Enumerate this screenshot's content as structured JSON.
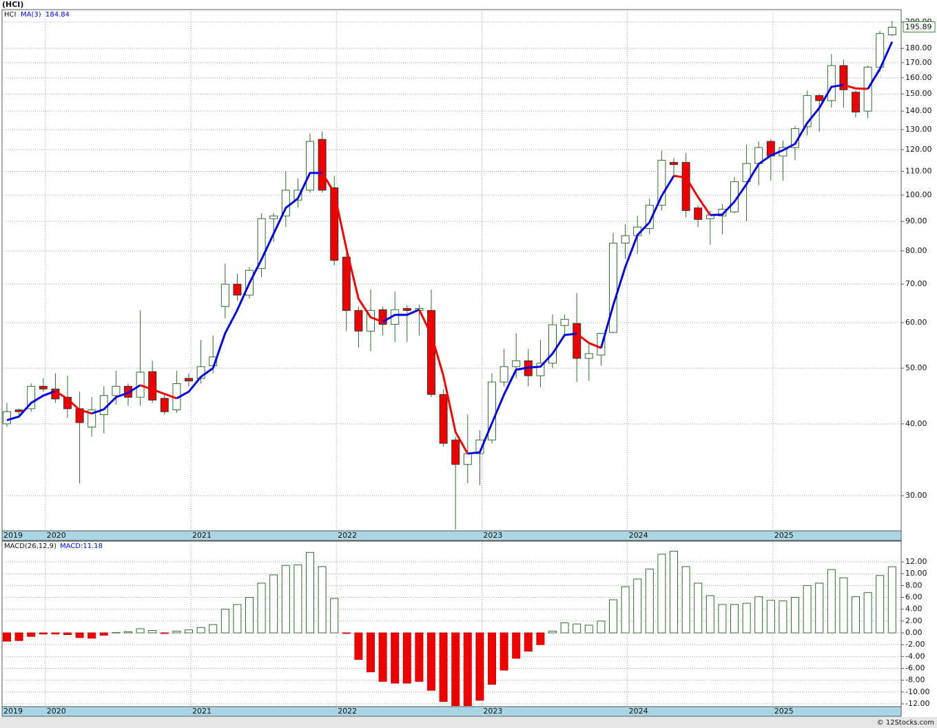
{
  "chart_data": [
    {
      "type": "candlestick",
      "title": "(HCI)",
      "symbol": "HCI",
      "log_scale": true,
      "grid": true,
      "up_color": "#ffffff",
      "down_color": "#ee0000",
      "outline_color": "#2f6b2f",
      "categories": [
        "2019",
        null,
        null,
        "2020",
        null,
        null,
        null,
        null,
        null,
        null,
        null,
        null,
        null,
        null,
        null,
        "2021",
        null,
        null,
        null,
        null,
        null,
        null,
        null,
        null,
        null,
        null,
        null,
        "2022",
        null,
        null,
        null,
        null,
        null,
        null,
        null,
        null,
        null,
        null,
        null,
        "2023",
        null,
        null,
        null,
        null,
        null,
        null,
        null,
        null,
        null,
        null,
        null,
        "2024",
        null,
        null,
        null,
        null,
        null,
        null,
        null,
        null,
        null,
        null,
        null,
        "2025",
        null,
        null,
        null,
        null,
        null,
        null,
        null,
        null,
        null,
        null
      ],
      "open": [
        40,
        42.3,
        42.5,
        46.5,
        46,
        44.5,
        42.5,
        39.5,
        41.5,
        44.8,
        46.5,
        44.5,
        49.3,
        44.3,
        42.3,
        48,
        48,
        50.5,
        64,
        70,
        67,
        74.5,
        91,
        92,
        98,
        102,
        125,
        103,
        78,
        63,
        58,
        63.2,
        59.6,
        63.5,
        63,
        63,
        45,
        37.5,
        34,
        35.5,
        37.5,
        47.3,
        50.3,
        51.5,
        48.5,
        51,
        59.3,
        59.8,
        52,
        52.7,
        57.7,
        82.5,
        85,
        87.5,
        96,
        114,
        114,
        95,
        91,
        92,
        93.5,
        105.5,
        113.5,
        124,
        117,
        121,
        131.5,
        149,
        146,
        168,
        151,
        140,
        167,
        190
      ],
      "high": [
        43.5,
        42.5,
        47,
        48,
        49,
        48.5,
        45.5,
        44.5,
        46.5,
        49.5,
        47,
        63,
        51.5,
        45.2,
        49.5,
        49,
        56,
        57,
        76,
        73,
        75,
        93,
        93,
        110,
        107,
        128,
        129,
        108,
        80,
        64,
        68.5,
        64,
        68,
        64.3,
        64.5,
        68.5,
        46,
        38,
        41.5,
        39,
        49,
        54,
        57.5,
        54,
        56,
        62,
        62,
        67.5,
        55.5,
        57.5,
        86,
        89,
        92,
        98.5,
        119.5,
        116,
        118.5,
        96,
        94,
        96.5,
        107.5,
        122.5,
        124,
        125,
        124.5,
        132,
        152,
        150,
        176,
        172,
        152,
        168,
        193,
        201
      ],
      "low": [
        39.5,
        41,
        42,
        45.5,
        43.5,
        41,
        31.5,
        38,
        38.5,
        43.2,
        43,
        43,
        43.5,
        41.5,
        41.8,
        46.5,
        47,
        49,
        61,
        65.5,
        66,
        72,
        83,
        88,
        95,
        101,
        101,
        75.5,
        58,
        54.3,
        53.5,
        57,
        55.5,
        55.5,
        57,
        44.5,
        36.5,
        26.2,
        31.5,
        31.3,
        37,
        46.5,
        48,
        46.5,
        46.3,
        50,
        57,
        47.3,
        47.5,
        50.5,
        57.5,
        77.5,
        79,
        85.5,
        94,
        108,
        91.5,
        88,
        82,
        85.5,
        93,
        90,
        104,
        106,
        106,
        115,
        127,
        129,
        142,
        142,
        136.5,
        136,
        164,
        189
      ],
      "close": [
        42,
        42,
        46.5,
        46,
        44.2,
        42.5,
        40.2,
        42.3,
        44.8,
        46.5,
        44.5,
        49.2,
        44,
        42,
        47,
        47.5,
        50.3,
        52.3,
        70,
        67,
        74,
        91,
        92,
        102,
        102,
        124,
        102,
        77,
        63,
        58,
        63,
        59.6,
        63.2,
        63,
        63.5,
        45,
        37,
        34,
        35.5,
        37.5,
        47.3,
        50.3,
        51.5,
        48.5,
        51,
        59.5,
        60.8,
        52,
        53,
        57.5,
        82.5,
        85,
        88,
        96,
        115,
        113,
        94,
        90.7,
        92.3,
        94.5,
        105.5,
        113.5,
        121,
        117,
        121,
        130.5,
        149,
        146,
        168,
        152.5,
        139.5,
        167,
        191,
        195.89
      ],
      "ma": {
        "name": "MA(3)",
        "value": 184.84,
        "up_color": "#0000dd",
        "down_color": "#ee0000",
        "values": [
          40.6,
          41.2,
          43.5,
          44.8,
          45.6,
          44.2,
          42.3,
          41.7,
          42.4,
          44.5,
          45.3,
          46.7,
          45.9,
          45.1,
          44.3,
          45.5,
          48.3,
          50,
          57.5,
          63.1,
          70.3,
          77.3,
          85.7,
          95,
          98.7,
          109.3,
          109.3,
          101,
          80.7,
          66,
          61.3,
          60.2,
          61.9,
          61.9,
          63.2,
          57.2,
          48.5,
          38.7,
          35.5,
          35.7,
          40.1,
          45,
          49.7,
          50.1,
          50.3,
          53,
          57.1,
          57.4,
          55.3,
          54.2,
          64.3,
          75,
          85.2,
          89.7,
          99.7,
          108,
          107.3,
          99.2,
          92.3,
          92.5,
          97.4,
          104.5,
          113.3,
          117.2,
          119.7,
          122.8,
          133.5,
          141.8,
          154.3,
          155.5,
          153.3,
          153,
          165.8,
          184.84
        ]
      },
      "ylim": [
        26.06,
        210.2
      ],
      "yticks": [
        {
          "value": 30,
          "label": "30.00"
        },
        {
          "value": 40,
          "label": "40.00"
        },
        {
          "value": 50,
          "label": "50.00"
        },
        {
          "value": 60,
          "label": "60.00"
        },
        {
          "value": 70,
          "label": "70.00"
        },
        {
          "value": 80,
          "label": "80.00"
        },
        {
          "value": 90,
          "label": "90.00"
        },
        {
          "value": 100,
          "label": "100.00"
        },
        {
          "value": 110,
          "label": "110.00"
        },
        {
          "value": 120,
          "label": "120.00"
        },
        {
          "value": 130,
          "label": "130.00"
        },
        {
          "value": 140,
          "label": "140.00"
        },
        {
          "value": 150,
          "label": "150.00"
        },
        {
          "value": 160,
          "label": "160.00"
        },
        {
          "value": 170,
          "label": "170.00"
        },
        {
          "value": 180,
          "label": "180.00"
        },
        {
          "value": 200,
          "label": "200.00"
        }
      ]
    },
    {
      "type": "bar",
      "name": "MACD(26,12,9)",
      "legend_value": "MACD:11.18",
      "grid": true,
      "up_color": "#ffffff",
      "down_color": "#ee0000",
      "outline_color": "#2f6b2f",
      "categories": [
        "2019",
        null,
        null,
        "2020",
        null,
        null,
        null,
        null,
        null,
        null,
        null,
        null,
        null,
        null,
        null,
        "2021",
        null,
        null,
        null,
        null,
        null,
        null,
        null,
        null,
        null,
        null,
        null,
        "2022",
        null,
        null,
        null,
        null,
        null,
        null,
        null,
        null,
        null,
        null,
        null,
        "2023",
        null,
        null,
        null,
        null,
        null,
        null,
        null,
        null,
        null,
        null,
        null,
        "2024",
        null,
        null,
        null,
        null,
        null,
        null,
        null,
        null,
        null,
        null,
        null,
        "2025",
        null,
        null,
        null,
        null,
        null,
        null,
        null,
        null,
        null,
        null
      ],
      "values": [
        -1.4,
        -1.3,
        -0.6,
        -0.2,
        -0.2,
        -0.3,
        -0.8,
        -0.9,
        -0.4,
        0.05,
        0.2,
        0.7,
        0.4,
        -0.1,
        0.3,
        0.5,
        0.9,
        1.4,
        4,
        4.8,
        6,
        8.4,
        9.8,
        11.4,
        11.5,
        13.6,
        11.2,
        5.8,
        -0.1,
        -4.5,
        -6.6,
        -8.2,
        -8.5,
        -8.5,
        -8.2,
        -9.7,
        -11.6,
        -12.3,
        -12.3,
        -11.4,
        -8.7,
        -6.3,
        -4.3,
        -3.1,
        -2,
        0.3,
        1.7,
        1.5,
        1.3,
        2,
        5.6,
        7.8,
        9.1,
        10.8,
        13.3,
        13.8,
        11.2,
        8.4,
        6.3,
        4.8,
        4.8,
        5,
        6.1,
        5.5,
        5.4,
        6,
        8,
        8.4,
        10.7,
        9.3,
        6.1,
        6.8,
        9.7,
        11.18
      ],
      "ylim": [
        -12.47,
        15.5
      ],
      "yticks": [
        {
          "value": 12,
          "label": "12.00"
        },
        {
          "value": 10,
          "label": "10.00"
        },
        {
          "value": 8,
          "label": "8.00"
        },
        {
          "value": 6,
          "label": "6.00"
        },
        {
          "value": 4,
          "label": "4.00"
        },
        {
          "value": 2,
          "label": "2.00"
        },
        {
          "value": 0,
          "label": "0.00"
        },
        {
          "value": -2,
          "label": "-2.00"
        },
        {
          "value": -4,
          "label": "-4.00"
        },
        {
          "value": -6,
          "label": "-6.00"
        },
        {
          "value": -8,
          "label": "-8.00"
        },
        {
          "value": -10,
          "label": "-10.00"
        },
        {
          "value": -12,
          "label": "-12.00"
        }
      ]
    }
  ],
  "footer": "© 12Stocks.com"
}
